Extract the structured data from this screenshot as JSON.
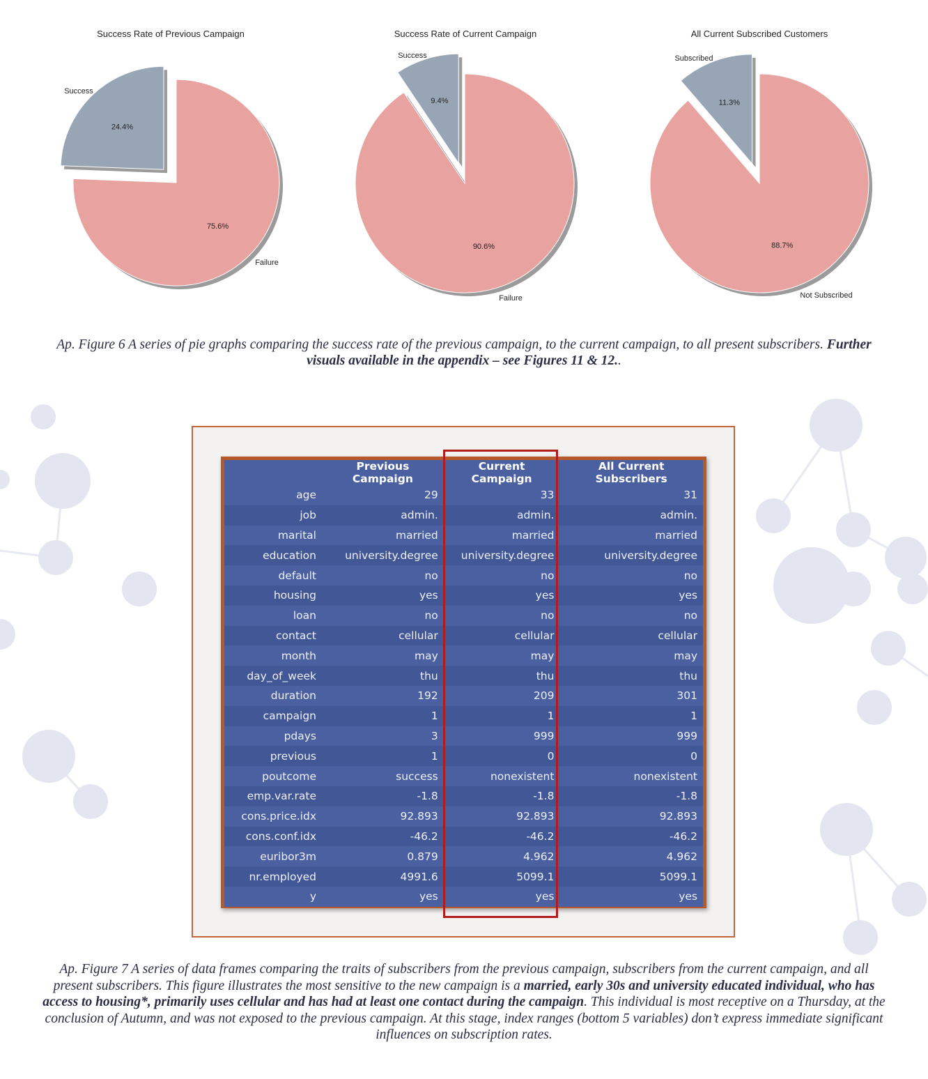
{
  "figure6": {
    "chart_data": [
      {
        "type": "pie",
        "title": "Success Rate of Previous Campaign",
        "labels": [
          "Success",
          "Failure"
        ],
        "values": [
          24.4,
          75.6
        ],
        "value_labels": [
          "24.4%",
          "75.6%"
        ],
        "colors": [
          "#98a5b4",
          "#e8a3a0"
        ],
        "exploded": "Success"
      },
      {
        "type": "pie",
        "title": "Success Rate of Current Campaign",
        "labels": [
          "Success",
          "Failure"
        ],
        "values": [
          9.4,
          90.6
        ],
        "value_labels": [
          "9.4%",
          "90.6%"
        ],
        "colors": [
          "#98a5b4",
          "#e8a3a0"
        ],
        "exploded": "Success"
      },
      {
        "type": "pie",
        "title": "All Current Subscribed Customers",
        "labels": [
          "Subscribed",
          "Not Subscribed"
        ],
        "values": [
          11.3,
          88.7
        ],
        "value_labels": [
          "11.3%",
          "88.7%"
        ],
        "colors": [
          "#98a5b4",
          "#e8a3a0"
        ],
        "exploded": "Subscribed"
      }
    ],
    "caption_plain": "Ap. Figure 6 A series of pie graphs comparing the success rate of the previous campaign, to the current campaign, to all present subscribers. ",
    "caption_bold": "Further visuals available in the appendix – see Figures 11 & 12.",
    "caption_end": "."
  },
  "figure7": {
    "table": {
      "columns": [
        "",
        "Previous Campaign",
        "Current Campaign",
        "All Current Subscribers"
      ],
      "rows": [
        [
          "age",
          "29",
          "33",
          "31"
        ],
        [
          "job",
          "admin.",
          "admin.",
          "admin."
        ],
        [
          "marital",
          "married",
          "married",
          "married"
        ],
        [
          "education",
          "university.degree",
          "university.degree",
          "university.degree"
        ],
        [
          "default",
          "no",
          "no",
          "no"
        ],
        [
          "housing",
          "yes",
          "yes",
          "yes"
        ],
        [
          "loan",
          "no",
          "no",
          "no"
        ],
        [
          "contact",
          "cellular",
          "cellular",
          "cellular"
        ],
        [
          "month",
          "may",
          "may",
          "may"
        ],
        [
          "day_of_week",
          "thu",
          "thu",
          "thu"
        ],
        [
          "duration",
          "192",
          "209",
          "301"
        ],
        [
          "campaign",
          "1",
          "1",
          "1"
        ],
        [
          "pdays",
          "3",
          "999",
          "999"
        ],
        [
          "previous",
          "1",
          "0",
          "0"
        ],
        [
          "poutcome",
          "success",
          "nonexistent",
          "nonexistent"
        ],
        [
          "emp.var.rate",
          "-1.8",
          "-1.8",
          "-1.8"
        ],
        [
          "cons.price.idx",
          "92.893",
          "92.893",
          "92.893"
        ],
        [
          "cons.conf.idx",
          "-46.2",
          "-46.2",
          "-46.2"
        ],
        [
          "euribor3m",
          "0.879",
          "4.962",
          "4.962"
        ],
        [
          "nr.employed",
          "4991.6",
          "5099.1",
          "5099.1"
        ],
        [
          "y",
          "yes",
          "yes",
          "yes"
        ]
      ],
      "highlighted_column": "Current Campaign",
      "highlight_color": "#b31c1c"
    },
    "caption_1": "Ap. Figure 7 A series of data frames comparing the traits of subscribers from the previous campaign, subscribers from the current campaign, and all present subscribers. This figure illustrates the most sensitive to the new campaign is a ",
    "caption_bold": "married, early 30s and university educated individual, who has access to housing*, primarily uses cellular and has had at least one contact during the campaign",
    "caption_2": ". This individual is most receptive on a Thursday, at the conclusion of Autumn, and was not exposed to the previous campaign. At this stage, index ranges (bottom 5 variables) don’t express immediate significant influences on subscription rates."
  }
}
